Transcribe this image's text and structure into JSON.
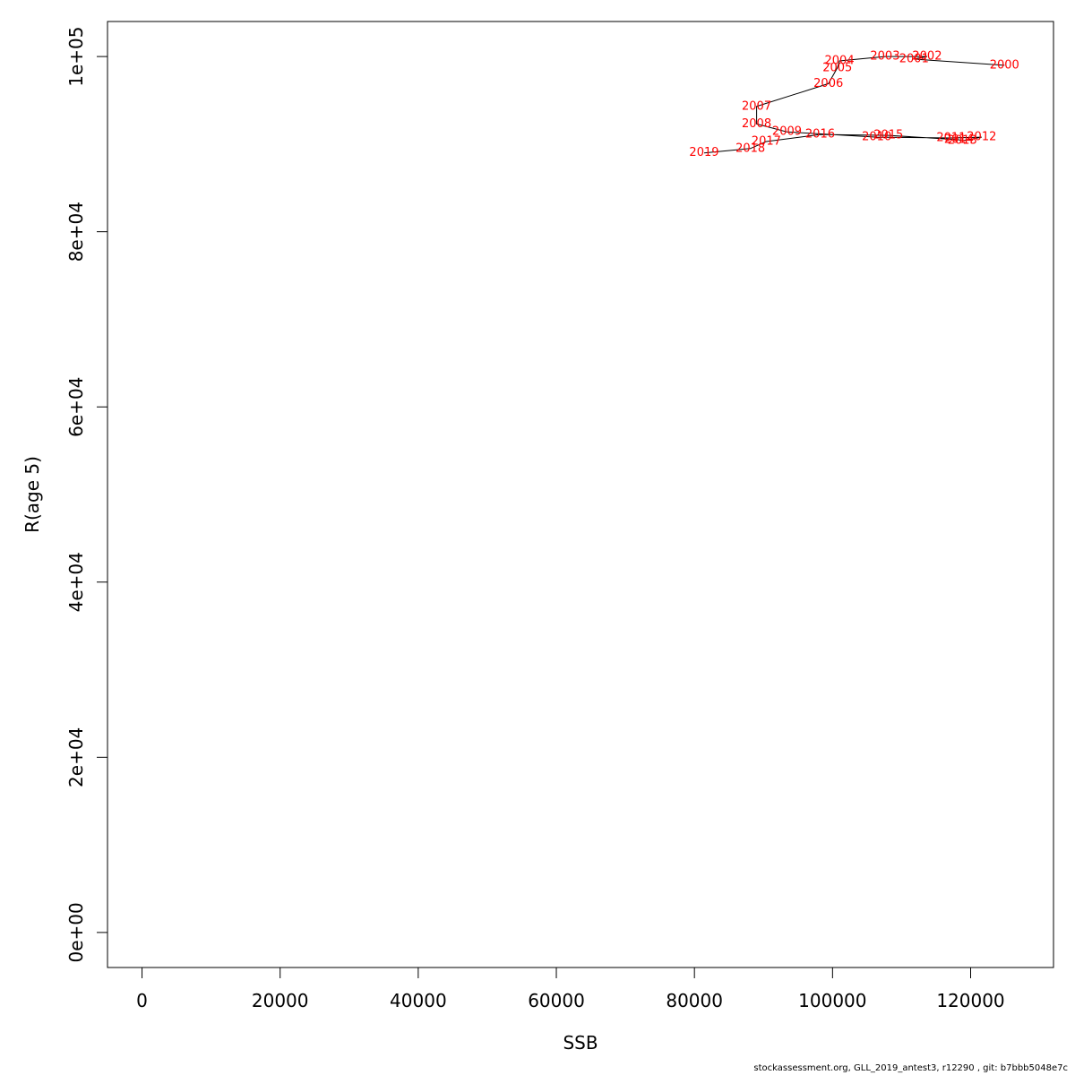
{
  "chart_data": {
    "type": "line",
    "xlabel": "SSB",
    "ylabel": "R(age 5)",
    "xlim": [
      -5000,
      132000
    ],
    "ylim": [
      -4000,
      104000
    ],
    "x_ticks": [
      0,
      20000,
      40000,
      60000,
      80000,
      100000,
      120000
    ],
    "x_tick_labels": [
      "0",
      "20000",
      "40000",
      "60000",
      "80000",
      "100000",
      "120000"
    ],
    "y_ticks": [
      0,
      20000,
      40000,
      60000,
      80000,
      100000
    ],
    "y_tick_labels": [
      "0e+00",
      "2e+04",
      "4e+04",
      "6e+04",
      "8e+04",
      "1e+05"
    ],
    "line_color": "#000000",
    "label_color": "#ff0000",
    "points": [
      {
        "label": "2000",
        "x": 124900,
        "y": 99000
      },
      {
        "label": "2001",
        "x": 111800,
        "y": 99700
      },
      {
        "label": "2002",
        "x": 113700,
        "y": 100000
      },
      {
        "label": "2003",
        "x": 107600,
        "y": 100000
      },
      {
        "label": "2004",
        "x": 101000,
        "y": 99500
      },
      {
        "label": "2005",
        "x": 100700,
        "y": 98700
      },
      {
        "label": "2006",
        "x": 99400,
        "y": 96900
      },
      {
        "label": "2007",
        "x": 89000,
        "y": 94300
      },
      {
        "label": "2008",
        "x": 89000,
        "y": 92300
      },
      {
        "label": "2009",
        "x": 93400,
        "y": 91400
      },
      {
        "label": "2010",
        "x": 106400,
        "y": 90800
      },
      {
        "label": "2011",
        "x": 117200,
        "y": 90700
      },
      {
        "label": "2012",
        "x": 121600,
        "y": 90800
      },
      {
        "label": "2013",
        "x": 118800,
        "y": 90400
      },
      {
        "label": "2014",
        "x": 118300,
        "y": 90500
      },
      {
        "label": "2015",
        "x": 108100,
        "y": 91000
      },
      {
        "label": "2016",
        "x": 98200,
        "y": 91100
      },
      {
        "label": "2017",
        "x": 90400,
        "y": 90300
      },
      {
        "label": "2018",
        "x": 88100,
        "y": 89500
      },
      {
        "label": "2019",
        "x": 81400,
        "y": 89000
      }
    ]
  },
  "footer": "stockassessment.org, GLL_2019_antest3, r12290 , git: b7bbb5048e7c"
}
